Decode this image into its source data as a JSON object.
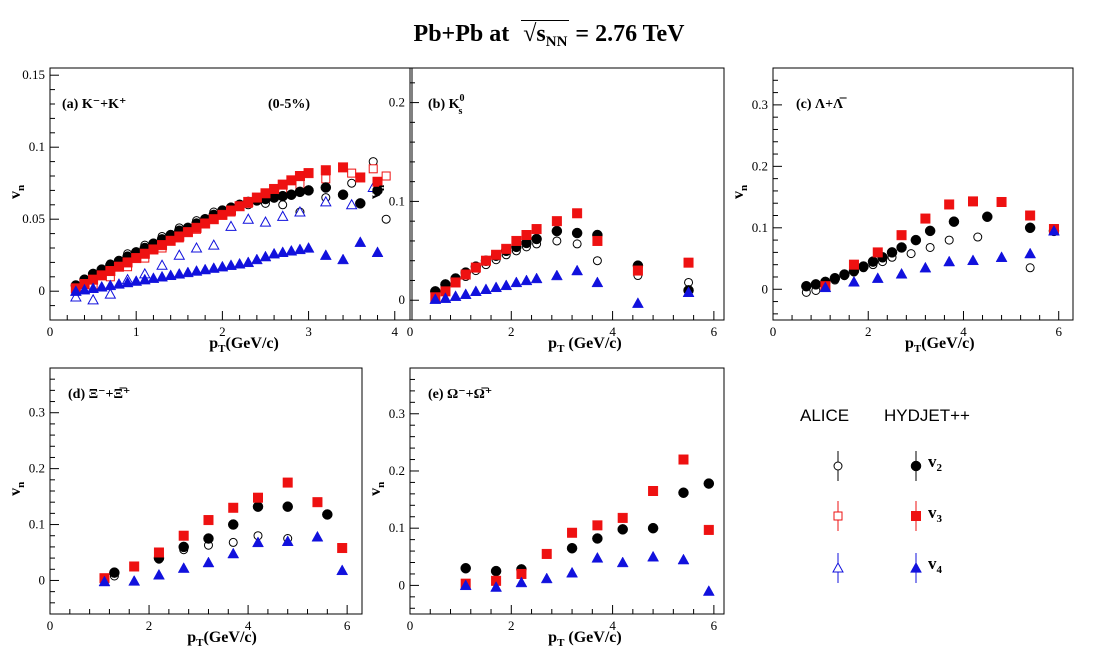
{
  "title": {
    "main": "Pb+Pb at",
    "root_base": "s",
    "root_sub": "NN",
    "energy": "= 2.76 TeV"
  },
  "colors": {
    "v2": "#000000",
    "v3": "#ee1111",
    "v4": "#1111dd"
  },
  "legend": {
    "alice": "ALICE",
    "hydjet": "HYDJET++",
    "rows": [
      {
        "name": "v",
        "sub": "2",
        "harmonic": "v2"
      },
      {
        "name": "v",
        "sub": "3",
        "harmonic": "v3"
      },
      {
        "name": "v",
        "sub": "4",
        "harmonic": "v4"
      }
    ]
  },
  "chart_data": [
    {
      "type": "scatter",
      "panel": "a",
      "label": "(a)  K⁻+K⁺",
      "annotation": "(0-5%)",
      "xlabel": "pT(GeV/c)",
      "ylabel": "vn",
      "xlim": [
        0,
        4.2
      ],
      "ylim": [
        -0.02,
        0.155
      ],
      "xticks": [
        0,
        1,
        2,
        3,
        4
      ],
      "yticks": [
        0,
        0.05,
        0.1,
        0.15
      ],
      "series": [
        {
          "name": "ALICE v2",
          "harmonic": "v2",
          "source": "ALICE",
          "x": [
            0.3,
            0.5,
            0.7,
            0.9,
            1.1,
            1.3,
            1.5,
            1.7,
            1.9,
            2.1,
            2.3,
            2.5,
            2.7,
            2.9,
            3.2,
            3.5,
            3.75,
            3.9
          ],
          "y": [
            0.004,
            0.011,
            0.019,
            0.026,
            0.032,
            0.038,
            0.044,
            0.049,
            0.055,
            0.058,
            0.06,
            0.061,
            0.06,
            0.055,
            0.065,
            0.075,
            0.09,
            0.05
          ]
        },
        {
          "name": "ALICE v3",
          "harmonic": "v3",
          "source": "ALICE",
          "x": [
            0.3,
            0.5,
            0.7,
            0.9,
            1.1,
            1.3,
            1.5,
            1.7,
            1.9,
            2.1,
            2.3,
            2.5,
            2.7,
            2.9,
            3.2,
            3.5,
            3.75,
            3.9
          ],
          "y": [
            0.002,
            0.004,
            0.01,
            0.017,
            0.023,
            0.03,
            0.037,
            0.043,
            0.05,
            0.055,
            0.061,
            0.065,
            0.07,
            0.074,
            0.078,
            0.082,
            0.085,
            0.08
          ]
        },
        {
          "name": "ALICE v4",
          "harmonic": "v4",
          "source": "ALICE",
          "x": [
            0.3,
            0.5,
            0.7,
            0.9,
            1.1,
            1.3,
            1.5,
            1.7,
            1.9,
            2.1,
            2.3,
            2.5,
            2.7,
            2.9,
            3.2,
            3.5,
            3.75
          ],
          "y": [
            -0.004,
            -0.006,
            -0.002,
            0.008,
            0.012,
            0.018,
            0.025,
            0.03,
            0.032,
            0.045,
            0.05,
            0.048,
            0.052,
            0.055,
            0.062,
            0.06,
            0.072
          ]
        },
        {
          "name": "HYDJET++ v2",
          "harmonic": "v2",
          "source": "HYDJET++",
          "x": [
            0.3,
            0.4,
            0.5,
            0.6,
            0.7,
            0.8,
            0.9,
            1.0,
            1.1,
            1.2,
            1.3,
            1.4,
            1.5,
            1.6,
            1.7,
            1.8,
            1.9,
            2.0,
            2.1,
            2.2,
            2.3,
            2.4,
            2.5,
            2.6,
            2.7,
            2.8,
            2.9,
            3.0,
            3.2,
            3.4,
            3.6,
            3.8
          ],
          "y": [
            0.004,
            0.008,
            0.012,
            0.015,
            0.018,
            0.021,
            0.024,
            0.027,
            0.03,
            0.033,
            0.036,
            0.039,
            0.042,
            0.044,
            0.047,
            0.05,
            0.053,
            0.056,
            0.058,
            0.06,
            0.062,
            0.063,
            0.064,
            0.065,
            0.066,
            0.067,
            0.069,
            0.07,
            0.072,
            0.067,
            0.061,
            0.07
          ]
        },
        {
          "name": "HYDJET++ v3",
          "harmonic": "v3",
          "source": "HYDJET++",
          "x": [
            0.3,
            0.4,
            0.5,
            0.6,
            0.7,
            0.8,
            0.9,
            1.0,
            1.1,
            1.2,
            1.3,
            1.4,
            1.5,
            1.6,
            1.7,
            1.8,
            1.9,
            2.0,
            2.1,
            2.2,
            2.3,
            2.4,
            2.5,
            2.6,
            2.7,
            2.8,
            2.9,
            3.0,
            3.2,
            3.4,
            3.6,
            3.8
          ],
          "y": [
            0.002,
            0.005,
            0.008,
            0.011,
            0.014,
            0.017,
            0.02,
            0.023,
            0.026,
            0.029,
            0.032,
            0.035,
            0.038,
            0.041,
            0.044,
            0.047,
            0.05,
            0.053,
            0.056,
            0.059,
            0.062,
            0.065,
            0.068,
            0.071,
            0.074,
            0.077,
            0.08,
            0.082,
            0.084,
            0.086,
            0.079,
            0.076
          ]
        },
        {
          "name": "HYDJET++ v4",
          "harmonic": "v4",
          "source": "HYDJET++",
          "x": [
            0.3,
            0.4,
            0.5,
            0.6,
            0.7,
            0.8,
            0.9,
            1.0,
            1.1,
            1.2,
            1.3,
            1.4,
            1.5,
            1.6,
            1.7,
            1.8,
            1.9,
            2.0,
            2.1,
            2.2,
            2.3,
            2.4,
            2.5,
            2.6,
            2.7,
            2.8,
            2.9,
            3.0,
            3.2,
            3.4,
            3.6,
            3.8
          ],
          "y": [
            0.0,
            0.001,
            0.002,
            0.003,
            0.004,
            0.005,
            0.006,
            0.007,
            0.008,
            0.009,
            0.01,
            0.011,
            0.012,
            0.013,
            0.014,
            0.015,
            0.016,
            0.017,
            0.018,
            0.019,
            0.02,
            0.022,
            0.024,
            0.026,
            0.027,
            0.028,
            0.029,
            0.03,
            0.025,
            0.022,
            0.034,
            0.027
          ]
        }
      ]
    },
    {
      "type": "scatter",
      "panel": "b",
      "label": "(b)  K",
      "label_sup": "0",
      "label_sub": "s",
      "annotation": "",
      "xlabel": "pT (GeV/c)",
      "ylabel": "vn",
      "xlim": [
        0,
        6.2
      ],
      "ylim": [
        -0.02,
        0.235
      ],
      "xticks": [
        0,
        2,
        4,
        6
      ],
      "yticks": [
        0,
        0.1,
        0.2
      ],
      "series": [
        {
          "name": "ALICE v2",
          "harmonic": "v2",
          "source": "ALICE",
          "x": [
            0.5,
            0.7,
            0.9,
            1.1,
            1.3,
            1.5,
            1.7,
            1.9,
            2.1,
            2.3,
            2.5,
            2.9,
            3.3,
            3.7,
            4.5,
            5.5
          ],
          "y": [
            0.006,
            0.012,
            0.018,
            0.024,
            0.03,
            0.036,
            0.041,
            0.046,
            0.05,
            0.054,
            0.057,
            0.06,
            0.057,
            0.04,
            0.025,
            0.018
          ]
        },
        {
          "name": "HYDJET++ v2",
          "harmonic": "v2",
          "source": "HYDJET++",
          "x": [
            0.5,
            0.7,
            0.9,
            1.1,
            1.3,
            1.5,
            1.7,
            1.9,
            2.1,
            2.3,
            2.5,
            2.9,
            3.3,
            3.7,
            4.5,
            5.5
          ],
          "y": [
            0.009,
            0.016,
            0.022,
            0.028,
            0.034,
            0.04,
            0.045,
            0.05,
            0.054,
            0.058,
            0.062,
            0.07,
            0.068,
            0.066,
            0.035,
            0.01
          ]
        },
        {
          "name": "HYDJET++ v3",
          "harmonic": "v3",
          "source": "HYDJET++",
          "x": [
            0.5,
            0.7,
            0.9,
            1.1,
            1.3,
            1.5,
            1.7,
            1.9,
            2.1,
            2.3,
            2.5,
            2.9,
            3.3,
            3.7,
            4.5,
            5.5
          ],
          "y": [
            0.003,
            0.009,
            0.018,
            0.026,
            0.033,
            0.04,
            0.046,
            0.052,
            0.06,
            0.066,
            0.072,
            0.08,
            0.088,
            0.06,
            0.03,
            0.038
          ]
        },
        {
          "name": "HYDJET++ v4",
          "harmonic": "v4",
          "source": "HYDJET++",
          "x": [
            0.5,
            0.7,
            0.9,
            1.1,
            1.3,
            1.5,
            1.7,
            1.9,
            2.1,
            2.3,
            2.5,
            2.9,
            3.3,
            3.7,
            4.5,
            5.5
          ],
          "y": [
            0.001,
            0.002,
            0.004,
            0.006,
            0.009,
            0.011,
            0.013,
            0.015,
            0.018,
            0.02,
            0.022,
            0.025,
            0.03,
            0.018,
            -0.003,
            0.008
          ]
        }
      ]
    },
    {
      "type": "scatter",
      "panel": "c",
      "label": "(c)  Λ+Λ̅",
      "annotation": "",
      "xlabel": "pT(GeV/c)",
      "ylabel": "vn",
      "xlim": [
        0,
        6.3
      ],
      "ylim": [
        -0.05,
        0.36
      ],
      "xticks": [
        0,
        2,
        4,
        6
      ],
      "yticks": [
        0,
        0.1,
        0.2,
        0.3
      ],
      "series": [
        {
          "name": "ALICE v2",
          "harmonic": "v2",
          "source": "ALICE",
          "x": [
            0.7,
            0.9,
            1.1,
            1.3,
            1.5,
            1.7,
            1.9,
            2.1,
            2.3,
            2.5,
            2.9,
            3.3,
            3.7,
            4.3,
            5.4
          ],
          "y": [
            -0.005,
            -0.002,
            0.005,
            0.015,
            0.022,
            0.028,
            0.035,
            0.04,
            0.045,
            0.052,
            0.058,
            0.068,
            0.08,
            0.085,
            0.035
          ]
        },
        {
          "name": "HYDJET++ v2",
          "harmonic": "v2",
          "source": "HYDJET++",
          "x": [
            0.7,
            0.9,
            1.1,
            1.3,
            1.5,
            1.7,
            1.9,
            2.1,
            2.3,
            2.5,
            2.7,
            3.0,
            3.3,
            3.8,
            4.5,
            5.4,
            5.9
          ],
          "y": [
            0.005,
            0.008,
            0.012,
            0.018,
            0.024,
            0.03,
            0.037,
            0.045,
            0.052,
            0.06,
            0.068,
            0.08,
            0.095,
            0.11,
            0.118,
            0.1,
            0.095
          ]
        },
        {
          "name": "HYDJET++ v3",
          "harmonic": "v3",
          "source": "HYDJET++",
          "x": [
            1.1,
            1.7,
            2.2,
            2.7,
            3.2,
            3.7,
            4.2,
            4.8,
            5.4,
            5.9
          ],
          "y": [
            0.005,
            0.04,
            0.06,
            0.088,
            0.115,
            0.138,
            0.143,
            0.142,
            0.12,
            0.098
          ]
        },
        {
          "name": "HYDJET++ v4",
          "harmonic": "v4",
          "source": "HYDJET++",
          "x": [
            1.1,
            1.7,
            2.2,
            2.7,
            3.2,
            3.7,
            4.2,
            4.8,
            5.4,
            5.9
          ],
          "y": [
            0.003,
            0.012,
            0.018,
            0.025,
            0.035,
            0.045,
            0.047,
            0.052,
            0.058,
            0.095
          ]
        }
      ]
    },
    {
      "type": "scatter",
      "panel": "d",
      "label": "(d)    Ξ⁻+Ξ̅⁺",
      "annotation": "",
      "xlabel": "pT(GeV/c)",
      "ylabel": "vn",
      "xlim": [
        0,
        6.3
      ],
      "ylim": [
        -0.06,
        0.38
      ],
      "xticks": [
        0,
        2,
        4,
        6
      ],
      "yticks": [
        0,
        0.1,
        0.2,
        0.3
      ],
      "series": [
        {
          "name": "ALICE v2",
          "harmonic": "v2",
          "source": "ALICE",
          "x": [
            1.3,
            2.2,
            2.7,
            3.2,
            3.7,
            4.2,
            4.8,
            5.4
          ],
          "y": [
            0.008,
            0.038,
            0.055,
            0.063,
            0.068,
            0.08,
            0.075,
            0.14
          ]
        },
        {
          "name": "HYDJET++ v2",
          "harmonic": "v2",
          "source": "HYDJET++",
          "x": [
            1.3,
            2.2,
            2.7,
            3.2,
            3.7,
            4.2,
            4.8,
            5.6
          ],
          "y": [
            0.014,
            0.04,
            0.06,
            0.075,
            0.1,
            0.132,
            0.132,
            0.118
          ]
        },
        {
          "name": "HYDJET++ v3",
          "harmonic": "v3",
          "source": "HYDJET++",
          "x": [
            1.1,
            1.7,
            2.2,
            2.7,
            3.2,
            3.7,
            4.2,
            4.8,
            5.4,
            5.9
          ],
          "y": [
            0.004,
            0.025,
            0.05,
            0.08,
            0.108,
            0.13,
            0.148,
            0.175,
            0.14,
            0.058
          ]
        },
        {
          "name": "HYDJET++ v4",
          "harmonic": "v4",
          "source": "HYDJET++",
          "x": [
            1.1,
            1.7,
            2.2,
            2.7,
            3.2,
            3.7,
            4.2,
            4.8,
            5.4,
            5.9
          ],
          "y": [
            -0.002,
            -0.001,
            0.01,
            0.022,
            0.032,
            0.048,
            0.068,
            0.07,
            0.078,
            0.018
          ]
        }
      ]
    },
    {
      "type": "scatter",
      "panel": "e",
      "label": "(e)  Ω⁻+Ω̅⁺",
      "annotation": "",
      "xlabel": "pT (GeV/c)",
      "ylabel": "vn",
      "xlim": [
        0,
        6.2
      ],
      "ylim": [
        -0.05,
        0.38
      ],
      "xticks": [
        0,
        2,
        4,
        6
      ],
      "yticks": [
        0,
        0.1,
        0.2,
        0.3
      ],
      "series": [
        {
          "name": "HYDJET++ v2",
          "harmonic": "v2",
          "source": "HYDJET++",
          "x": [
            1.1,
            1.7,
            2.2,
            3.2,
            3.7,
            4.2,
            4.8,
            5.4,
            5.9
          ],
          "y": [
            0.03,
            0.025,
            0.028,
            0.065,
            0.082,
            0.098,
            0.1,
            0.162,
            0.178
          ]
        },
        {
          "name": "HYDJET++ v3",
          "harmonic": "v3",
          "source": "HYDJET++",
          "x": [
            1.1,
            1.7,
            2.2,
            2.7,
            3.2,
            3.7,
            4.2,
            4.8,
            5.4,
            5.9
          ],
          "y": [
            0.003,
            0.008,
            0.02,
            0.055,
            0.092,
            0.105,
            0.118,
            0.165,
            0.22,
            0.097
          ]
        },
        {
          "name": "HYDJET++ v4",
          "harmonic": "v4",
          "source": "HYDJET++",
          "x": [
            1.1,
            1.7,
            2.2,
            2.7,
            3.2,
            3.7,
            4.2,
            4.8,
            5.4,
            5.9
          ],
          "y": [
            0.0,
            -0.003,
            0.005,
            0.012,
            0.022,
            0.048,
            0.04,
            0.05,
            0.045,
            -0.01
          ]
        }
      ]
    }
  ]
}
